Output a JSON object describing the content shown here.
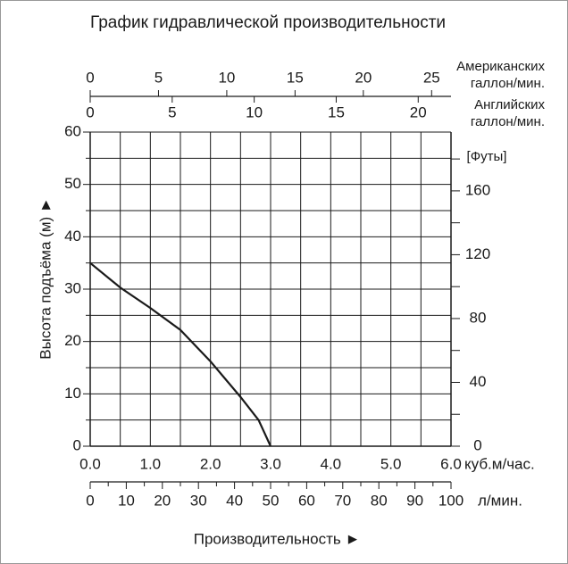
{
  "chart_data": {
    "type": "line",
    "title": "График гидравлической производительности",
    "x_label": "Производительность ►",
    "y_label": "Высота подъёма (м) ►",
    "x_unit": "куб.м/час.",
    "xlim": [
      0,
      6
    ],
    "xticks": [
      {
        "value": 0,
        "label": "0.0"
      },
      {
        "value": 1,
        "label": "1.0"
      },
      {
        "value": 2,
        "label": "2.0"
      },
      {
        "value": 3,
        "label": "3.0"
      },
      {
        "value": 4,
        "label": "4.0"
      },
      {
        "value": 5,
        "label": "5.0"
      },
      {
        "value": 6,
        "label": "6.0"
      }
    ],
    "x_minor_ticks": [
      0.5,
      1.5,
      2.5,
      3.5,
      4.5,
      5.5
    ],
    "ylim": [
      0,
      60
    ],
    "yticks": [
      0,
      10,
      20,
      30,
      40,
      50,
      60
    ],
    "y_minor_ticks": [
      5,
      15,
      25,
      35,
      45,
      55
    ],
    "y2_unit": "[Футы]",
    "y2lim": [
      0,
      196.85
    ],
    "y2ticks": [
      0,
      40,
      80,
      120,
      160
    ],
    "y2_minor_ticks": [
      20,
      60,
      100,
      140,
      180
    ],
    "lpm_axis": {
      "unit": "л/мин.",
      "lim": [
        0,
        100
      ],
      "ticks": [
        0,
        10,
        20,
        30,
        40,
        50,
        60,
        70,
        80,
        90,
        100
      ],
      "minor_ticks": [
        5,
        15,
        25,
        35,
        45,
        55,
        65,
        75,
        85,
        95
      ]
    },
    "us_axis": {
      "unit": [
        "Американских",
        "галлон/мин."
      ],
      "lim": [
        0,
        26.42
      ],
      "ticks": [
        0,
        5,
        10,
        15,
        20,
        25
      ]
    },
    "uk_axis": {
      "unit": [
        "Английских",
        "галлон/мин."
      ],
      "lim": [
        0,
        22.0
      ],
      "ticks": [
        0,
        5,
        10,
        15,
        20
      ]
    },
    "grid": true,
    "series": [
      {
        "color": "#1a1a1a",
        "x": [
          0,
          0.5,
          1.0,
          1.5,
          2.0,
          2.5,
          2.8,
          3.0
        ],
        "values": [
          35,
          30.3,
          26.4,
          22.2,
          16.2,
          9.4,
          5,
          0
        ]
      }
    ]
  }
}
